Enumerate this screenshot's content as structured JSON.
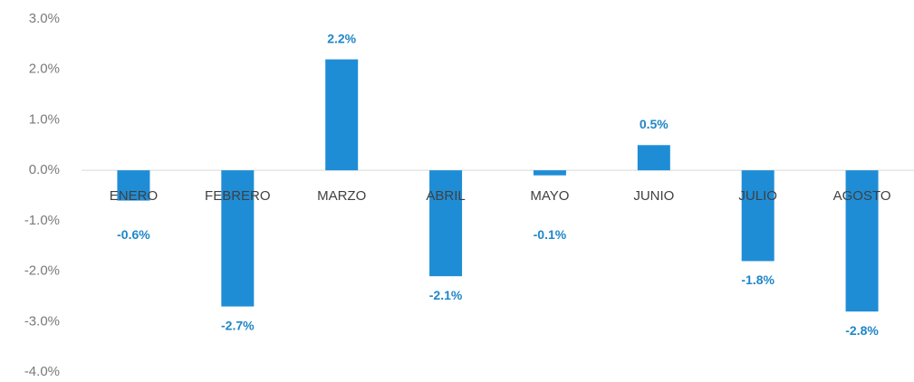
{
  "chart_data": {
    "type": "bar",
    "categories": [
      "ENERO",
      "FEBRERO",
      "MARZO",
      "ABRIL",
      "MAYO",
      "JUNIO",
      "JULIO",
      "AGOSTO"
    ],
    "values": [
      -0.6,
      -2.7,
      2.2,
      -2.1,
      -0.1,
      0.5,
      -1.8,
      -2.8
    ],
    "value_labels": [
      "-0.6%",
      "-2.7%",
      "2.2%",
      "-2.1%",
      "-0.1%",
      "0.5%",
      "-1.8%",
      "-2.8%"
    ],
    "color": "#1f8dd6",
    "ylim": [
      -4,
      3
    ],
    "yticks": [
      {
        "value": 3,
        "label": "3.0%"
      },
      {
        "value": 2,
        "label": "2.0%"
      },
      {
        "value": 1,
        "label": "1.0%"
      },
      {
        "value": 0,
        "label": "0.0%"
      },
      {
        "value": -1,
        "label": "-1.0%"
      },
      {
        "value": -2,
        "label": "-2.0%"
      },
      {
        "value": -3,
        "label": "-3.0%"
      },
      {
        "value": -4,
        "label": "-4.0%"
      }
    ],
    "grid": false
  }
}
